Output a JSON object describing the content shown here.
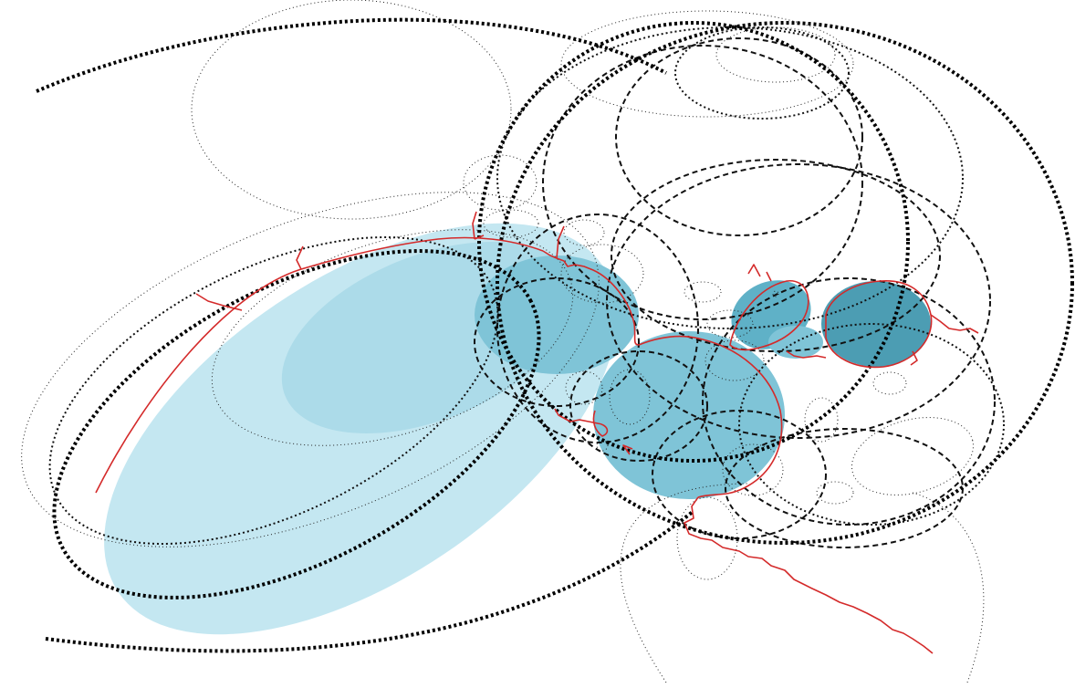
{
  "figure": {
    "colors": {
      "background": "#ffffff",
      "fill_light": "#c4e7f1",
      "fill_mid": "#acdbe9",
      "fill_dark": "#7fc4d7",
      "fill_darker": "#5fb1c7",
      "fill_darkest": "#4c9db3",
      "outline": "#111111",
      "boundary": "#d42a2a"
    },
    "line_styles": [
      "fine-dotted",
      "medium-dotted",
      "dashed",
      "heavy-dotted"
    ]
  }
}
